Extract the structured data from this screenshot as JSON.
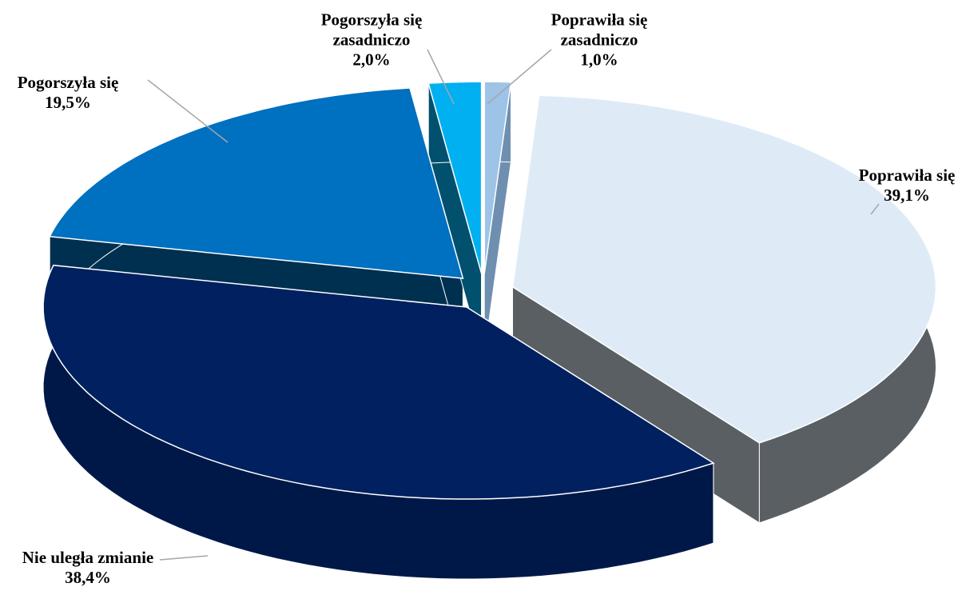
{
  "chart_data": {
    "type": "pie",
    "categories": [
      "Poprawiła się zasadniczo",
      "Poprawiła się",
      "Nie uległa zmianie",
      "Pogorszyła się",
      "Pogorszyła się zasadniczo"
    ],
    "values": [
      1.0,
      39.1,
      38.4,
      19.5,
      2.0
    ],
    "value_labels": [
      "1,0%",
      "39,1%",
      "38,4%",
      "19,5%",
      "2,0%"
    ],
    "colors": [
      "#9dc3e6",
      "#deebf7",
      "#002060",
      "#0070c0",
      "#00b0f0"
    ],
    "side_colors": [
      "#6f8fb0",
      "#5a5f63",
      "#001848",
      "#003050",
      "#00506e"
    ]
  }
}
